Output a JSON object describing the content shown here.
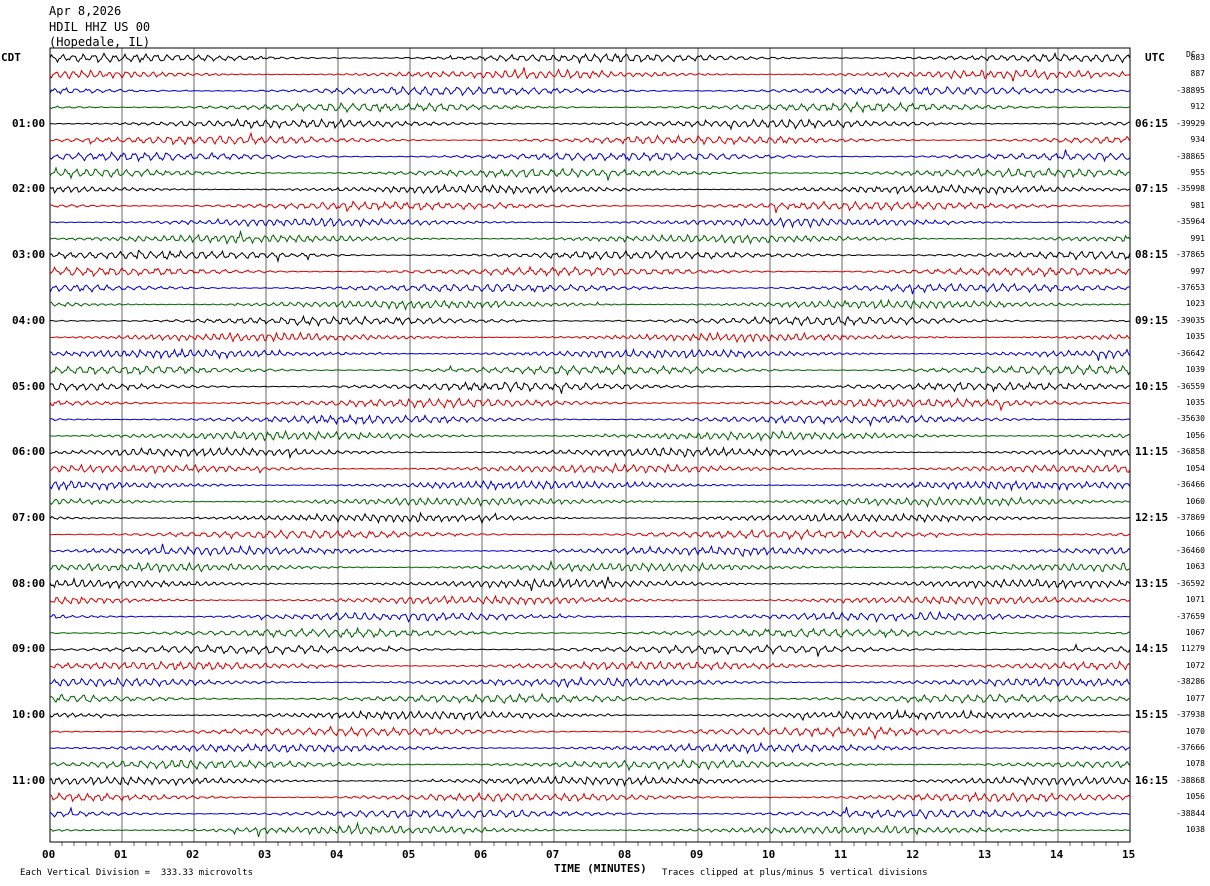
{
  "header": {
    "date": "Apr 8,2026",
    "station": "HDIL HHZ US 00",
    "location": "(Hopedale, IL)"
  },
  "left_timezone": "CDT",
  "right_timezone": "UTC",
  "dc_heading": "DC",
  "footer": {
    "scale": "Each Vertical Division =  333.33 microvolts",
    "clip": "Traces clipped at plus/minus 5 vertical divisions"
  },
  "colors": {
    "trace_cycle": [
      "#000000",
      "#d40000",
      "#0000c8",
      "#006400"
    ]
  },
  "chart_data": {
    "type": "line",
    "xlabel": "TIME (MINUTES)",
    "x_ticks": [
      "00",
      "01",
      "02",
      "03",
      "04",
      "05",
      "06",
      "07",
      "08",
      "09",
      "10",
      "11",
      "12",
      "13",
      "14",
      "15"
    ],
    "xlim": [
      0,
      15
    ],
    "trace_count": 48,
    "minutes_per_trace": 15,
    "left_hour_labels": [
      "01:00",
      "02:00",
      "03:00",
      "04:00",
      "05:00",
      "06:00",
      "07:00",
      "08:00",
      "09:00",
      "10:00",
      "11:00"
    ],
    "right_hour_labels": [
      "06:15",
      "07:15",
      "08:15",
      "09:15",
      "10:15",
      "11:15",
      "12:15",
      "13:15",
      "14:15",
      "15:15",
      "16:15"
    ],
    "dc_offsets": [
      "883",
      "887",
      "-38895",
      "912",
      "-39929",
      "934",
      "-38865",
      "955",
      "-35998",
      "981",
      "-35964",
      "991",
      "-37865",
      "997",
      "-37653",
      "1023",
      "-39035",
      "1035",
      "-36642",
      "1039",
      "-36559",
      "1035",
      "-35630",
      "1056",
      "-36858",
      "1054",
      "-36466",
      "1060",
      "-37869",
      "1066",
      "-36460",
      "1063",
      "-36592",
      "1071",
      "-37659",
      "1067",
      "11279",
      "1072",
      "-38286",
      "1077",
      "-37938",
      "1070",
      "-37666",
      "1078",
      "-38868",
      "1056",
      "-38844",
      "1038"
    ],
    "grid": true
  }
}
